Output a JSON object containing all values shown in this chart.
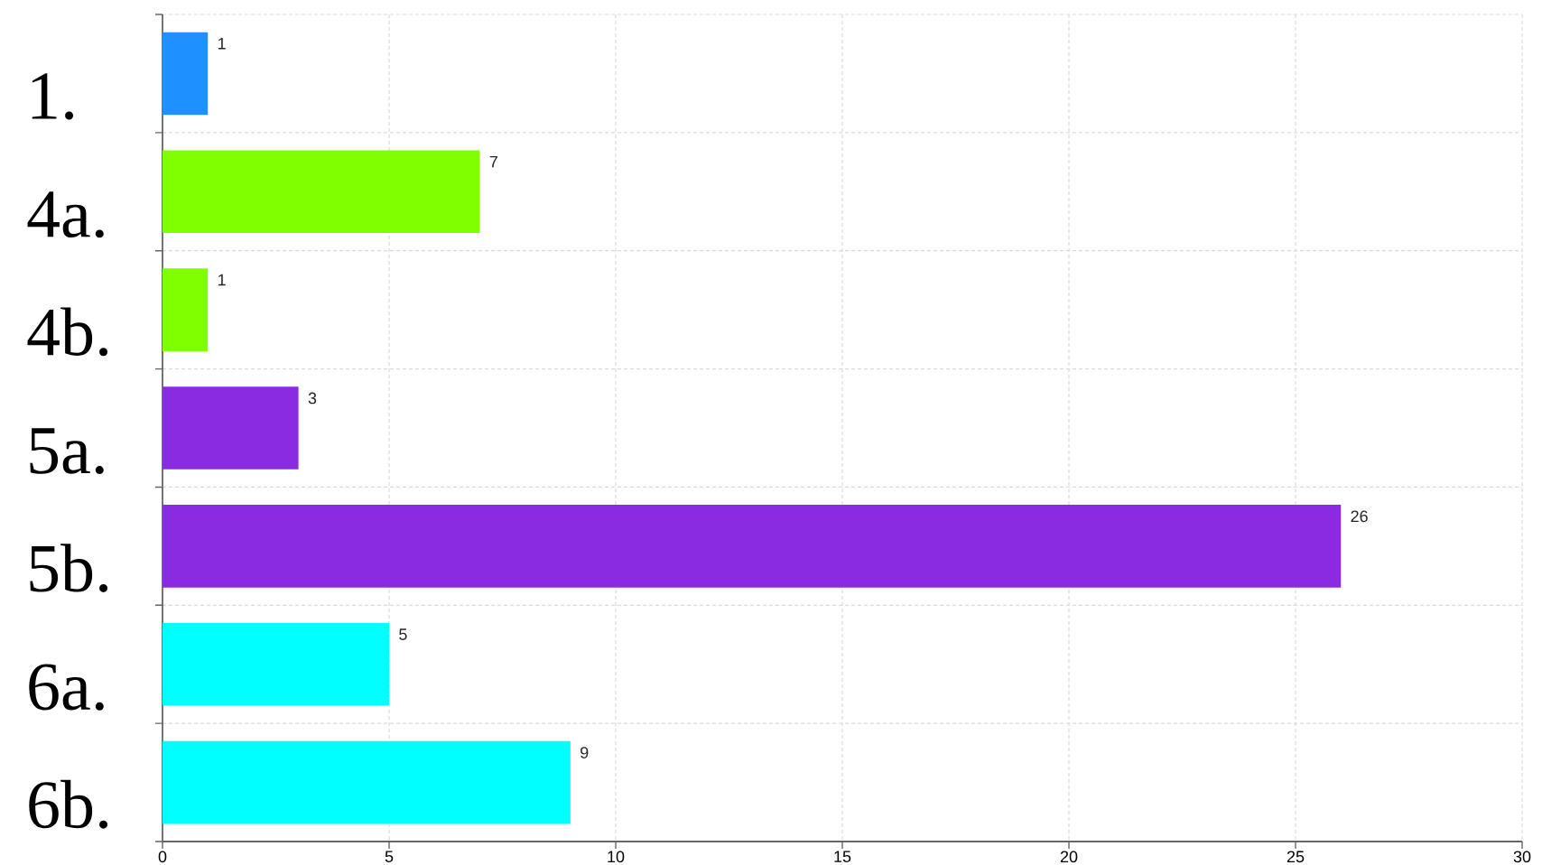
{
  "chart_data": {
    "type": "bar",
    "orientation": "horizontal",
    "categories": [
      "1.",
      "4a.",
      "4b.",
      "5a.",
      "5b.",
      "6a.",
      "6b."
    ],
    "values": [
      1,
      7,
      1,
      3,
      26,
      5,
      9
    ],
    "colors": [
      "#1e90ff",
      "#7fff00",
      "#7fff00",
      "#8a2be2",
      "#8a2be2",
      "#00ffff",
      "#00ffff"
    ],
    "xlim": [
      0,
      30
    ],
    "xticks": [
      0,
      5,
      10,
      15,
      20,
      25,
      30
    ],
    "grid": true,
    "data_labels": true
  }
}
